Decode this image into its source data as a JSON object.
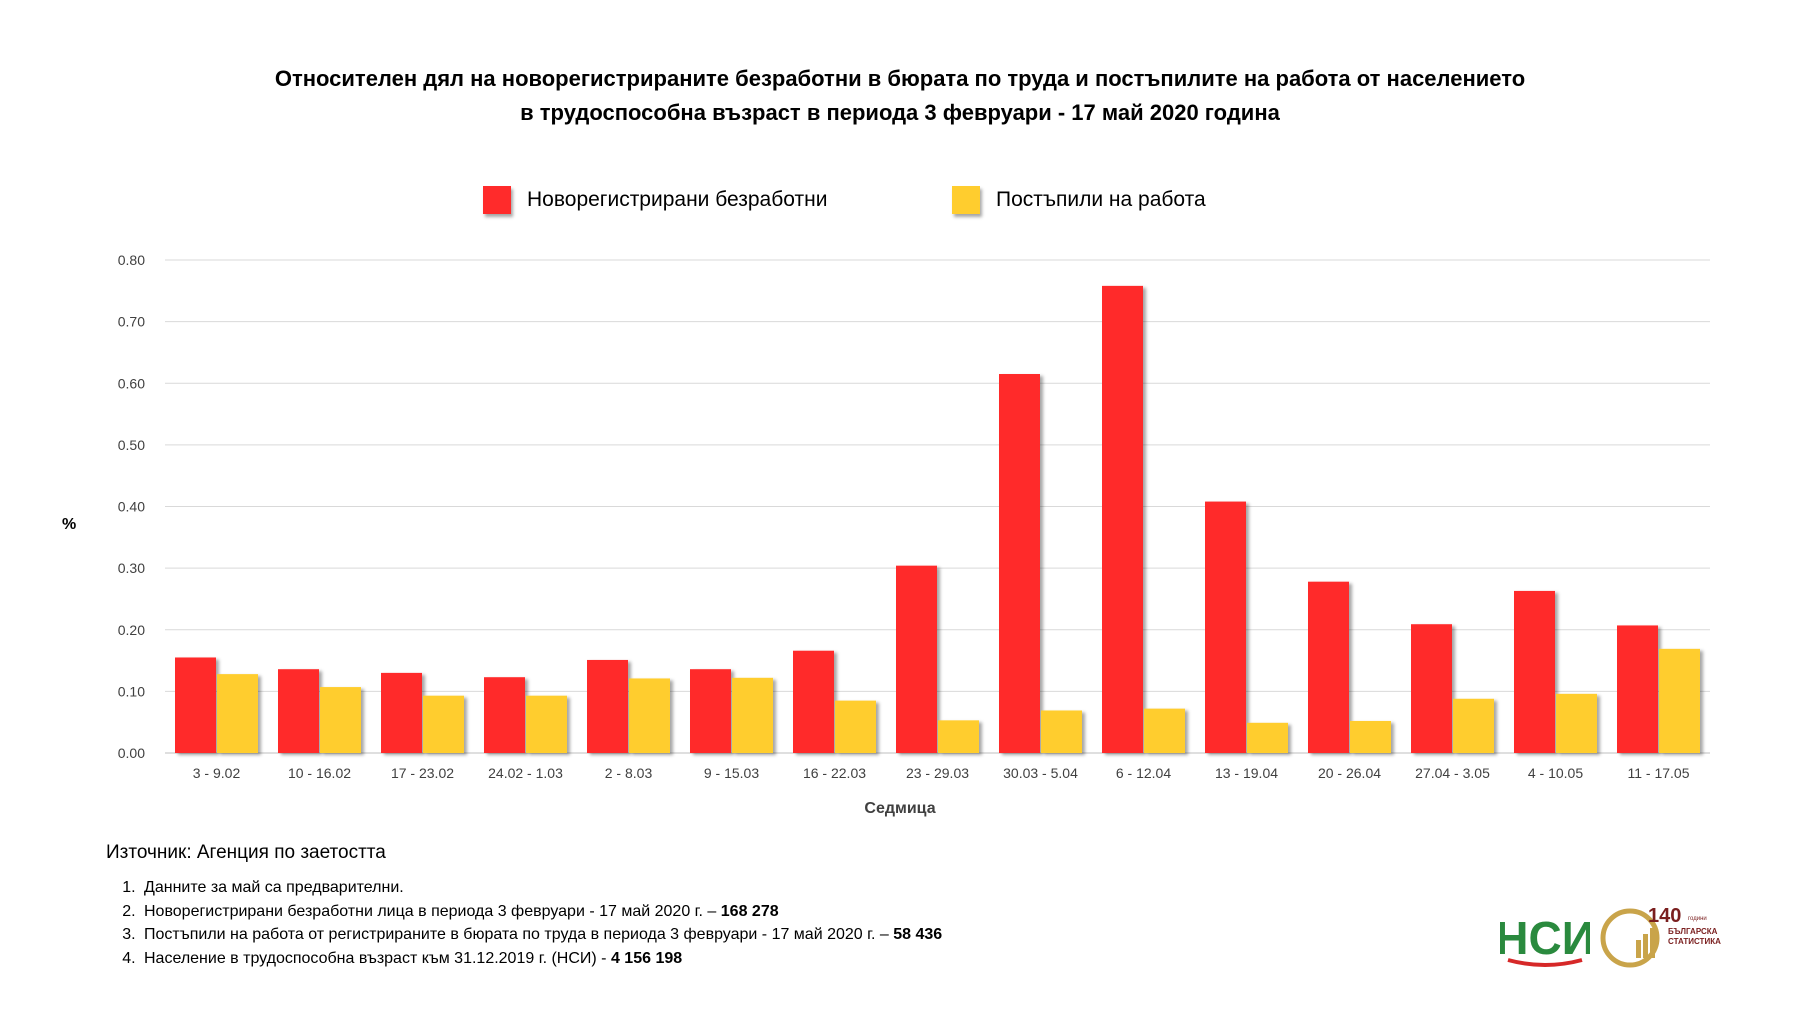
{
  "title_line1": "Относителен дял на новорегистрираните безработни в бюрата по труда и постъпилите на работа от населението",
  "title_line2": "в трудоспособна възраст в периода 3 февруари - 17 май 2020 година",
  "colors": {
    "series1": "#ff2b2b",
    "series2": "#ffcd2e",
    "grid": "#d9d9d9",
    "axis": "#bfbfbf",
    "tick_text": "#404040"
  },
  "chart_data": {
    "type": "bar",
    "title": "Относителен дял на новорегистрираните безработни в бюрата по труда и постъпилите на работа от населението в трудоспособна възраст в периода 3 февруари - 17 май 2020 година",
    "xlabel": "Седмица",
    "ylabel": "%",
    "ylim": [
      0,
      0.8
    ],
    "yticks": [
      "0.00",
      "0.10",
      "0.20",
      "0.30",
      "0.40",
      "0.50",
      "0.60",
      "0.70",
      "0.80"
    ],
    "grid": true,
    "legend_position": "top",
    "categories": [
      "3 - 9.02",
      "10 - 16.02",
      "17 - 23.02",
      "24.02 - 1.03",
      "2 - 8.03",
      "9 - 15.03",
      "16 - 22.03",
      "23 - 29.03",
      "30.03 - 5.04",
      "6 - 12.04",
      "13 - 19.04",
      "20 - 26.04",
      "27.04 - 3.05",
      "4 - 10.05",
      "11 - 17.05"
    ],
    "series": [
      {
        "name": "Новорегистрирани безработни",
        "color": "#ff2b2b",
        "values": [
          0.155,
          0.136,
          0.13,
          0.123,
          0.151,
          0.136,
          0.166,
          0.304,
          0.615,
          0.758,
          0.408,
          0.278,
          0.209,
          0.263,
          0.207
        ]
      },
      {
        "name": "Постъпили на работа",
        "color": "#ffcd2e",
        "values": [
          0.128,
          0.107,
          0.093,
          0.093,
          0.121,
          0.122,
          0.085,
          0.053,
          0.069,
          0.072,
          0.049,
          0.052,
          0.088,
          0.096,
          0.169
        ]
      }
    ]
  },
  "source": "Източник: Агенция по заетостта",
  "notes": [
    {
      "text": "Данните за май са предварителни.",
      "bold": ""
    },
    {
      "text": "Новорегистрирани безработни лица в периода 3 февруари - 17 май 2020 г. – ",
      "bold": "168 278"
    },
    {
      "text": "Постъпили на работа от регистрираните в бюрата по труда в периода 3 февруари - 17 май 2020 г. – ",
      "bold": "58 436"
    },
    {
      "text": "Население в трудоспособна възраст към 31.12.2019 г. (НСИ)  - ",
      "bold": "4 156 198"
    }
  ],
  "logos": {
    "nsi_text": "НСИ",
    "anniv_number": "140",
    "anniv_small": "години",
    "anniv_line1": "БЪЛГАРСКА",
    "anniv_line2": "СТАТИСТИКА"
  }
}
